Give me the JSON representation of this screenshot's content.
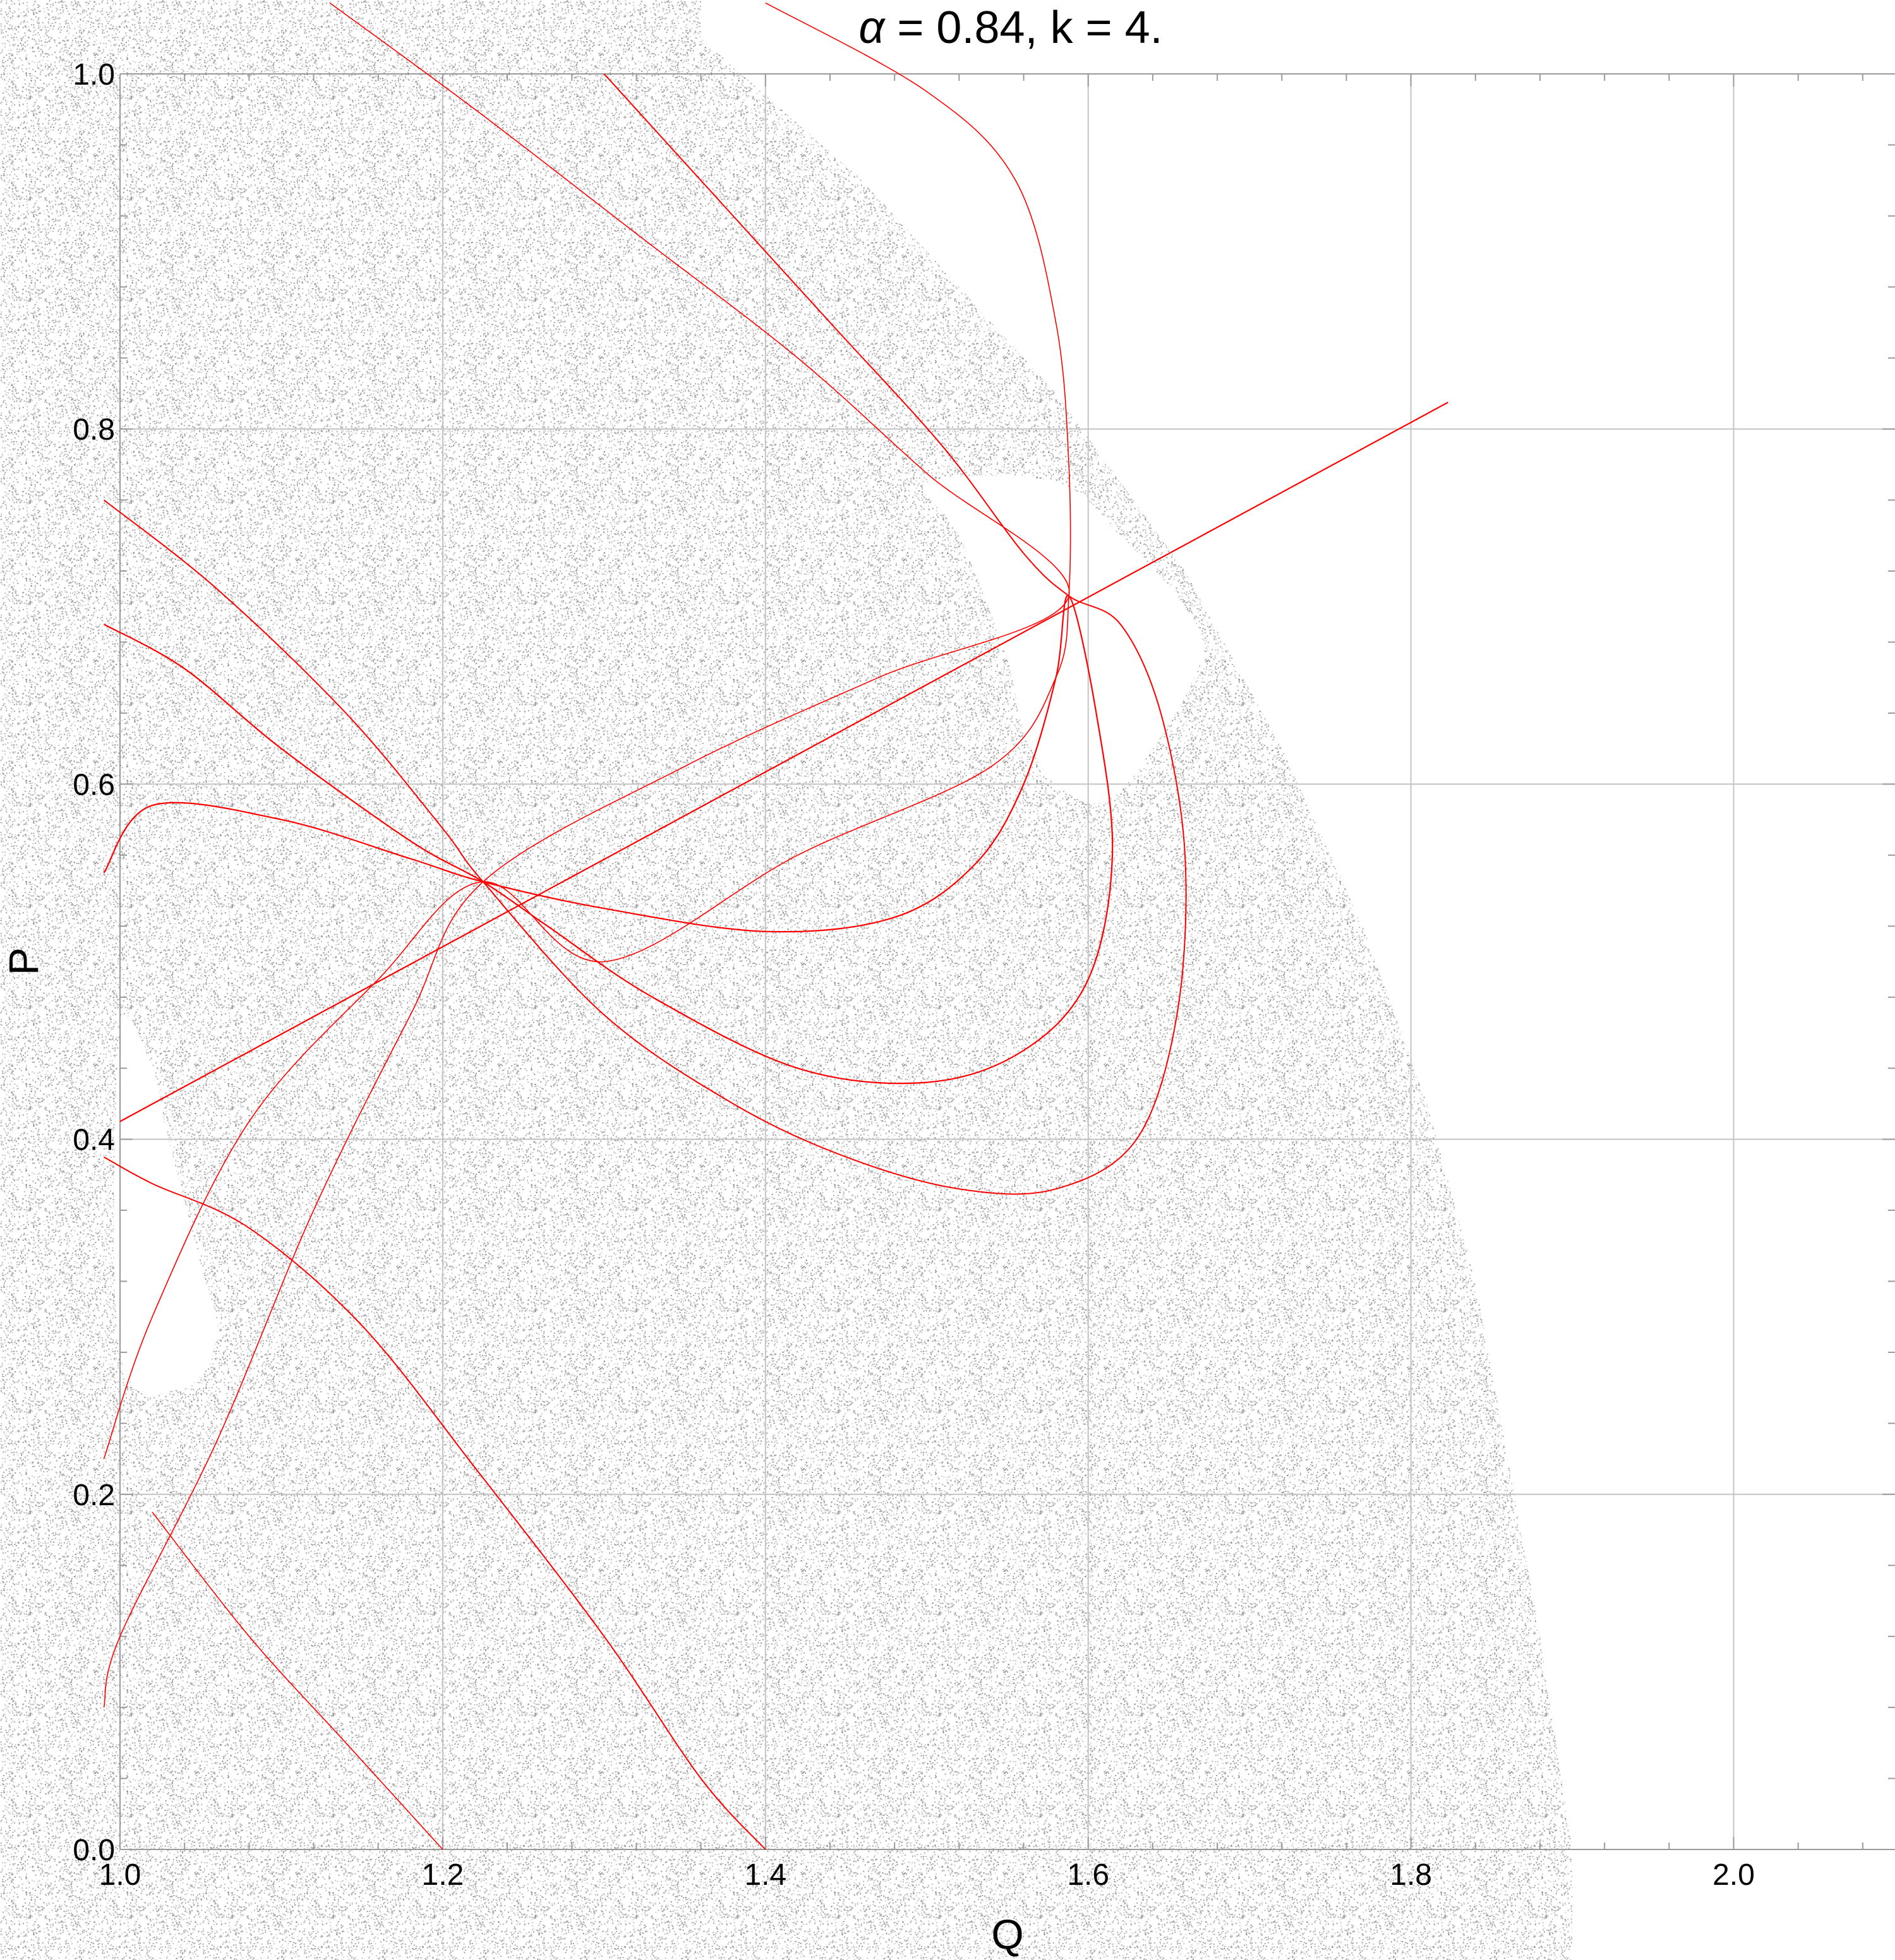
{
  "chart_data": {
    "type": "scatter",
    "title": "α = 0.84, k = 4.",
    "title_alpha": "α",
    "title_rest": " = 0.84, k = 4.",
    "xlabel": "Q",
    "ylabel": "P",
    "xlim": [
      1.0,
      2.1
    ],
    "ylim": [
      0.0,
      1.0
    ],
    "grid": true,
    "x_ticks": [
      1.0,
      1.2,
      1.4,
      1.6,
      1.8,
      2.0
    ],
    "x_tick_labels": [
      "1.0",
      "1.2",
      "1.4",
      "1.6",
      "1.8",
      "2.0"
    ],
    "y_ticks": [
      0.0,
      0.2,
      0.4,
      0.6,
      0.8,
      1.0
    ],
    "y_tick_labels": [
      "0.0",
      "0.2",
      "0.4",
      "0.6",
      "0.8",
      "1.0"
    ],
    "colors": {
      "background_points": "#8a8a8a",
      "curves": "#ff0000",
      "grid": "#c4c4c4"
    },
    "series": [
      {
        "role": "chaotic-sea",
        "kind": "point-cloud",
        "color": "#8a8a8a",
        "region_boundary": [
          [
            1.36,
            1.02
          ],
          [
            1.46,
            0.94
          ],
          [
            1.58,
            0.82
          ],
          [
            1.66,
            0.72
          ],
          [
            1.72,
            0.62
          ],
          [
            1.77,
            0.52
          ],
          [
            1.81,
            0.42
          ],
          [
            1.84,
            0.32
          ],
          [
            1.86,
            0.22
          ],
          [
            1.88,
            0.12
          ],
          [
            1.9,
            0.0
          ]
        ],
        "holes": [
          [
            [
              1.5,
              0.77
            ],
            [
              1.58,
              0.77
            ],
            [
              1.62,
              0.74
            ],
            [
              1.66,
              0.7
            ],
            [
              1.67,
              0.67
            ],
            [
              1.64,
              0.62
            ],
            [
              1.61,
              0.59
            ],
            [
              1.58,
              0.6
            ],
            [
              1.56,
              0.63
            ],
            [
              1.55,
              0.67
            ],
            [
              1.52,
              0.74
            ]
          ],
          [
            [
              1.0,
              0.46
            ],
            [
              1.02,
              0.44
            ],
            [
              1.03,
              0.4
            ],
            [
              1.05,
              0.33
            ],
            [
              1.06,
              0.29
            ],
            [
              1.04,
              0.26
            ],
            [
              1.0,
              0.28
            ]
          ]
        ]
      },
      {
        "role": "straight-line",
        "color": "#ff0000",
        "width": 2.2,
        "points": [
          [
            1.0,
            0.41
          ],
          [
            1.823,
            0.815
          ]
        ]
      },
      {
        "role": "inner-loop",
        "color": "#ff0000",
        "width": 2.2,
        "points": [
          [
            0.99,
            0.55
          ],
          [
            1.02,
            0.588
          ],
          [
            1.1,
            0.58
          ],
          [
            1.18,
            0.558
          ],
          [
            1.225,
            0.545
          ],
          [
            1.3,
            0.53
          ],
          [
            1.4,
            0.517
          ],
          [
            1.48,
            0.525
          ],
          [
            1.53,
            0.555
          ],
          [
            1.56,
            0.6
          ],
          [
            1.58,
            0.66
          ],
          [
            1.588,
            0.706
          ],
          [
            1.605,
            0.64
          ],
          [
            1.615,
            0.56
          ],
          [
            1.6,
            0.49
          ],
          [
            1.56,
            0.45
          ],
          [
            1.5,
            0.432
          ],
          [
            1.42,
            0.44
          ],
          [
            1.33,
            0.48
          ],
          [
            1.265,
            0.52
          ],
          [
            1.225,
            0.545
          ],
          [
            1.18,
            0.568
          ],
          [
            1.1,
            0.62
          ],
          [
            1.04,
            0.665
          ],
          [
            0.99,
            0.69
          ]
        ]
      },
      {
        "role": "outer-loop",
        "color": "#ff0000",
        "width": 2.0,
        "points": [
          [
            0.99,
            0.39
          ],
          [
            1.02,
            0.375
          ],
          [
            1.08,
            0.35
          ],
          [
            1.15,
            0.295
          ],
          [
            1.22,
            0.215
          ],
          [
            1.3,
            0.12
          ],
          [
            1.36,
            0.04
          ],
          [
            1.4,
            0.0
          ]
        ]
      },
      {
        "role": "long-arc",
        "color": "#ff0000",
        "width": 2.0,
        "points": [
          [
            0.99,
            0.76
          ],
          [
            1.06,
            0.71
          ],
          [
            1.14,
            0.64
          ],
          [
            1.2,
            0.575
          ],
          [
            1.225,
            0.545
          ],
          [
            1.3,
            0.47
          ],
          [
            1.38,
            0.42
          ],
          [
            1.45,
            0.39
          ],
          [
            1.52,
            0.372
          ],
          [
            1.58,
            0.372
          ],
          [
            1.63,
            0.4
          ],
          [
            1.655,
            0.47
          ],
          [
            1.66,
            0.56
          ],
          [
            1.645,
            0.64
          ],
          [
            1.62,
            0.69
          ],
          [
            1.588,
            0.706
          ],
          [
            1.56,
            0.73
          ],
          [
            1.51,
            0.79
          ],
          [
            1.44,
            0.86
          ],
          [
            1.36,
            0.94
          ],
          [
            1.3,
            1.0
          ]
        ]
      },
      {
        "role": "thin-arc-a",
        "color": "#ff0000",
        "width": 1.6,
        "points": [
          [
            1.4,
            1.04
          ],
          [
            1.5,
            0.99
          ],
          [
            1.555,
            0.94
          ],
          [
            1.58,
            0.86
          ],
          [
            1.588,
            0.78
          ],
          [
            1.588,
            0.706
          ],
          [
            1.58,
            0.66
          ],
          [
            1.54,
            0.61
          ],
          [
            1.42,
            0.56
          ],
          [
            1.3,
            0.5
          ],
          [
            1.225,
            0.545
          ],
          [
            1.16,
            0.49
          ],
          [
            1.08,
            0.41
          ],
          [
            1.02,
            0.3
          ],
          [
            0.99,
            0.22
          ]
        ]
      },
      {
        "role": "thin-arc-b",
        "color": "#ff0000",
        "width": 1.6,
        "points": [
          [
            1.13,
            1.04
          ],
          [
            1.22,
            0.98
          ],
          [
            1.32,
            0.91
          ],
          [
            1.42,
            0.84
          ],
          [
            1.5,
            0.775
          ],
          [
            1.588,
            0.706
          ],
          [
            1.47,
            0.66
          ],
          [
            1.35,
            0.61
          ],
          [
            1.225,
            0.545
          ],
          [
            1.18,
            0.47
          ],
          [
            1.12,
            0.36
          ],
          [
            1.06,
            0.23
          ],
          [
            1.0,
            0.12
          ],
          [
            0.99,
            0.08
          ]
        ]
      },
      {
        "role": "thin-arc-c",
        "color": "#ff0000",
        "width": 1.6,
        "points": [
          [
            1.02,
            0.19
          ],
          [
            1.08,
            0.12
          ],
          [
            1.14,
            0.06
          ],
          [
            1.2,
            0.0
          ]
        ]
      }
    ]
  }
}
